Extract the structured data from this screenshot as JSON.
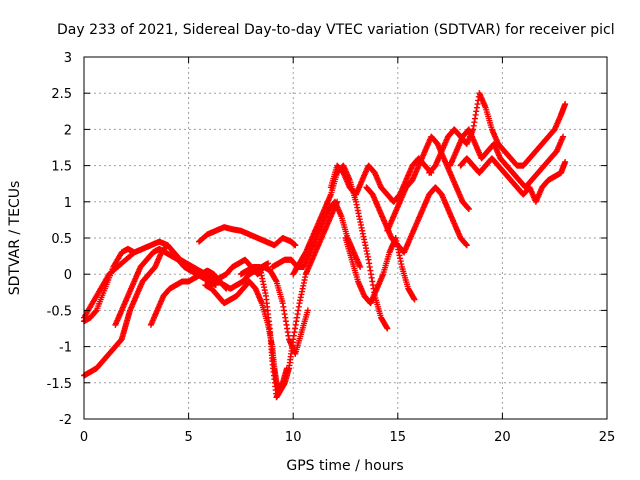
{
  "chart_data": {
    "type": "scatter",
    "title": "Day 233 of 2021, Sidereal Day-to-day VTEC variation (SDTVAR) for receiver picl",
    "xlabel": "GPS time / hours",
    "ylabel": "SDTVAR / TECUs",
    "xlim": [
      0,
      25
    ],
    "ylim": [
      -2,
      3
    ],
    "xticks": [
      0,
      5,
      10,
      15,
      20,
      25
    ],
    "yticks": [
      -2,
      -1.5,
      -1,
      -0.5,
      0,
      0.5,
      1,
      1.5,
      2,
      2.5,
      3
    ],
    "xtick_labels": [
      "0",
      "5",
      "10",
      "15",
      "20",
      "25"
    ],
    "ytick_labels": [
      "-2",
      "-1.5",
      "-1",
      "-0.5",
      "0",
      "0.5",
      "1",
      "1.5",
      "2",
      "2.5",
      "3"
    ],
    "grid": true,
    "marker": "+",
    "color": "#ff0000",
    "series": [
      {
        "x": [
          0.0,
          0.3,
          0.6,
          1.0,
          1.4,
          1.8,
          2.1,
          2.4
        ],
        "y": [
          -0.65,
          -0.6,
          -0.5,
          -0.2,
          0.1,
          0.3,
          0.35,
          0.3
        ]
      },
      {
        "x": [
          0.0,
          0.3,
          0.6,
          0.9,
          1.2,
          1.5,
          1.8,
          2.0,
          2.2,
          2.5,
          2.8,
          3.1,
          3.4,
          3.7,
          4.0
        ],
        "y": [
          -1.4,
          -1.35,
          -1.3,
          -1.2,
          -1.1,
          -1.0,
          -0.9,
          -0.7,
          -0.5,
          -0.3,
          -0.1,
          0.0,
          0.1,
          0.3,
          0.4
        ]
      },
      {
        "x": [
          0.0,
          0.4,
          0.8,
          1.2,
          1.6,
          2.0,
          2.4,
          2.8,
          3.2,
          3.6,
          4.0
        ],
        "y": [
          -0.6,
          -0.4,
          -0.2,
          0.0,
          0.1,
          0.2,
          0.3,
          0.35,
          0.4,
          0.45,
          0.4
        ]
      },
      {
        "x": [
          1.5,
          1.8,
          2.1,
          2.4,
          2.7,
          3.0,
          3.3,
          3.6,
          3.9,
          4.2,
          4.5,
          4.8,
          5.1,
          5.4,
          5.7,
          6.0,
          6.3
        ],
        "y": [
          -0.7,
          -0.5,
          -0.3,
          -0.1,
          0.1,
          0.2,
          0.3,
          0.35,
          0.3,
          0.25,
          0.2,
          0.1,
          0.05,
          0.0,
          -0.05,
          -0.1,
          -0.15
        ]
      },
      {
        "x": [
          3.2,
          3.5,
          3.8,
          4.1,
          4.4,
          4.7,
          5.0,
          5.3,
          5.6,
          5.9,
          6.2,
          6.5,
          6.8
        ],
        "y": [
          -0.7,
          -0.5,
          -0.3,
          -0.2,
          -0.15,
          -0.1,
          -0.1,
          -0.05,
          0.0,
          0.05,
          0.0,
          -0.1,
          -0.2
        ]
      },
      {
        "x": [
          4.0,
          4.3,
          4.6,
          4.9,
          5.2,
          5.5,
          5.8,
          6.1,
          6.4,
          6.7,
          7.0,
          7.3,
          7.6,
          7.9,
          8.2,
          8.5,
          8.8
        ],
        "y": [
          0.4,
          0.3,
          0.2,
          0.15,
          0.1,
          0.05,
          0.0,
          -0.05,
          -0.1,
          -0.15,
          -0.2,
          -0.15,
          -0.1,
          0.0,
          0.05,
          0.1,
          0.15
        ]
      },
      {
        "x": [
          5.5,
          5.9,
          6.3,
          6.7,
          7.1,
          7.5,
          7.9,
          8.3,
          8.7,
          9.1,
          9.5,
          9.9,
          10.1
        ],
        "y": [
          0.45,
          0.55,
          0.6,
          0.65,
          0.62,
          0.6,
          0.55,
          0.5,
          0.45,
          0.4,
          0.5,
          0.45,
          0.4
        ]
      },
      {
        "x": [
          5.8,
          6.1,
          6.4,
          6.7,
          7.0,
          7.3,
          7.6,
          7.9,
          8.2,
          8.5,
          8.8,
          9.0,
          9.1,
          9.2,
          9.3,
          9.5,
          9.7
        ],
        "y": [
          -0.15,
          -0.2,
          -0.3,
          -0.4,
          -0.35,
          -0.3,
          -0.2,
          -0.1,
          -0.2,
          -0.4,
          -0.7,
          -1.0,
          -1.3,
          -1.5,
          -1.6,
          -1.5,
          -1.3
        ]
      },
      {
        "x": [
          6.2,
          6.5,
          6.8,
          7.1,
          7.4,
          7.7,
          8.0,
          8.3,
          8.6,
          8.9,
          9.2,
          9.5,
          9.8,
          10.1,
          10.4,
          10.7
        ],
        "y": [
          -0.1,
          -0.05,
          0.0,
          0.1,
          0.15,
          0.2,
          0.1,
          0.0,
          0.1,
          0.05,
          -0.1,
          -0.4,
          -0.9,
          -1.1,
          -0.8,
          -0.5
        ]
      },
      {
        "x": [
          7.5,
          7.8,
          8.1,
          8.4,
          8.7,
          8.9,
          9.0,
          9.2,
          9.4,
          9.6,
          9.8,
          10.0,
          10.3,
          10.6,
          10.9,
          11.2,
          11.5,
          11.8,
          12.1
        ],
        "y": [
          0.0,
          0.05,
          0.1,
          0.1,
          -0.3,
          -0.8,
          -1.2,
          -1.7,
          -1.6,
          -1.5,
          -1.3,
          -0.9,
          -0.4,
          0.0,
          0.2,
          0.4,
          0.6,
          0.8,
          1.0
        ]
      },
      {
        "x": [
          9.0,
          9.3,
          9.6,
          9.9,
          10.2,
          10.5,
          10.8,
          11.1,
          11.4,
          11.7,
          12.0,
          12.3,
          12.6,
          12.9,
          13.2
        ],
        "y": [
          0.1,
          0.15,
          0.2,
          0.2,
          0.1,
          0.1,
          0.3,
          0.5,
          0.7,
          0.9,
          1.0,
          0.8,
          0.5,
          0.3,
          0.1
        ]
      },
      {
        "x": [
          10.0,
          10.3,
          10.6,
          10.9,
          11.2,
          11.5,
          11.8,
          12.1,
          12.4,
          12.7,
          13.0,
          13.3,
          13.6,
          13.9,
          14.2,
          14.5
        ],
        "y": [
          0.0,
          0.15,
          0.3,
          0.5,
          0.7,
          0.9,
          1.1,
          1.4,
          1.5,
          1.3,
          1.0,
          0.6,
          0.2,
          -0.3,
          -0.6,
          -0.75
        ]
      },
      {
        "x": [
          11.8,
          12.1,
          12.4,
          12.7,
          13.0,
          13.3,
          13.6,
          13.9,
          14.2,
          14.5,
          14.8,
          15.1,
          15.4,
          15.7,
          16.0,
          16.3,
          16.6
        ],
        "y": [
          1.2,
          1.5,
          1.4,
          1.2,
          1.1,
          1.3,
          1.5,
          1.4,
          1.2,
          1.1,
          1.0,
          1.1,
          1.3,
          1.5,
          1.6,
          1.5,
          1.4
        ]
      },
      {
        "x": [
          12.5,
          12.8,
          13.1,
          13.4,
          13.7,
          14.0,
          14.3,
          14.6,
          14.9,
          15.2,
          15.5,
          15.8
        ],
        "y": [
          0.5,
          0.2,
          -0.1,
          -0.3,
          -0.4,
          -0.2,
          0.0,
          0.3,
          0.5,
          0.1,
          -0.2,
          -0.35
        ]
      },
      {
        "x": [
          13.5,
          13.8,
          14.1,
          14.4,
          14.7,
          15.0,
          15.3,
          15.6,
          15.9,
          16.2,
          16.5,
          16.8,
          17.1,
          17.4,
          17.7,
          18.0,
          18.3
        ],
        "y": [
          1.2,
          1.1,
          0.9,
          0.7,
          0.5,
          0.4,
          0.3,
          0.5,
          0.7,
          0.9,
          1.1,
          1.2,
          1.1,
          0.9,
          0.7,
          0.5,
          0.4
        ]
      },
      {
        "x": [
          14.5,
          14.8,
          15.1,
          15.4,
          15.7,
          16.0,
          16.3,
          16.6,
          16.9,
          17.2,
          17.5,
          17.8,
          18.1,
          18.4
        ],
        "y": [
          0.6,
          0.8,
          1.0,
          1.2,
          1.3,
          1.5,
          1.7,
          1.9,
          1.8,
          1.6,
          1.4,
          1.2,
          1.0,
          0.9
        ]
      },
      {
        "x": [
          16.5,
          16.8,
          17.1,
          17.4,
          17.7,
          18.0,
          18.3,
          18.6,
          18.9,
          19.2,
          19.5,
          19.8,
          20.1,
          20.4,
          20.7,
          21.0,
          21.3,
          21.6,
          21.9,
          22.2,
          22.5,
          22.8,
          23.0
        ],
        "y": [
          1.4,
          1.5,
          1.7,
          1.9,
          2.0,
          1.9,
          1.8,
          2.0,
          2.5,
          2.3,
          2.0,
          1.8,
          1.7,
          1.6,
          1.5,
          1.5,
          1.6,
          1.7,
          1.8,
          1.9,
          2.0,
          2.2,
          2.35
        ]
      },
      {
        "x": [
          17.5,
          17.8,
          18.1,
          18.4,
          18.7,
          19.0,
          19.3,
          19.6,
          19.9,
          20.2,
          20.5,
          20.8,
          21.1,
          21.4,
          21.7,
          22.0,
          22.3,
          22.6,
          22.9
        ],
        "y": [
          1.5,
          1.7,
          1.9,
          2.0,
          1.8,
          1.6,
          1.7,
          1.8,
          1.6,
          1.5,
          1.4,
          1.3,
          1.2,
          1.3,
          1.4,
          1.5,
          1.6,
          1.7,
          1.9
        ]
      },
      {
        "x": [
          18.0,
          18.3,
          18.6,
          18.9,
          19.2,
          19.5,
          19.8,
          20.1,
          20.4,
          20.7,
          21.0,
          21.3,
          21.6,
          21.9,
          22.2,
          22.5,
          22.8,
          23.0
        ],
        "y": [
          1.5,
          1.6,
          1.5,
          1.4,
          1.5,
          1.6,
          1.5,
          1.4,
          1.3,
          1.2,
          1.1,
          1.2,
          1.0,
          1.2,
          1.3,
          1.35,
          1.4,
          1.55
        ]
      }
    ]
  }
}
